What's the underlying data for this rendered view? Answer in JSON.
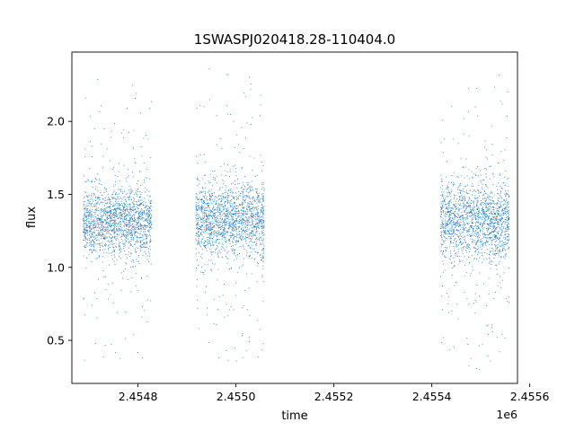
{
  "chart_data": {
    "type": "scatter",
    "title": "1SWASPJ020418.28-110404.0",
    "xlabel": "time",
    "ylabel": "flux",
    "x_offset_label": "1e6",
    "x_tick_labels": [
      "2.4548",
      "2.4550",
      "2.4552",
      "2.4554",
      "2.4556"
    ],
    "x_ticks": [
      2.4548,
      2.455,
      2.4552,
      2.4554,
      2.4556
    ],
    "y_tick_labels": [
      "0.5",
      "1.0",
      "1.5",
      "2.0"
    ],
    "y_ticks": [
      0.5,
      1.0,
      1.5,
      2.0
    ],
    "xlim": [
      2.454665,
      2.455575
    ],
    "ylim": [
      0.205,
      2.475
    ],
    "grid": false,
    "marker_color": "#1f77b4",
    "series": [
      {
        "points_summary": [
          {
            "time_range": [
              2.454687,
              2.454827
            ],
            "flux_median": 1.32,
            "flux_spread": 0.11,
            "flux_min": 0.36,
            "flux_max": 2.29
          },
          {
            "time_range": [
              2.454917,
              2.455057
            ],
            "flux_median": 1.33,
            "flux_spread": 0.12,
            "flux_min": 0.32,
            "flux_max": 2.39
          },
          {
            "time_range": [
              2.455055,
              2.455055
            ],
            "flux_median": 1.3,
            "flux_spread": 0.2,
            "flux_min": 0.32,
            "flux_max": 1.7
          },
          {
            "time_range": [
              2.455417,
              2.455557
            ],
            "flux_median": 1.32,
            "flux_spread": 0.13,
            "flux_min": 0.3,
            "flux_max": 2.34
          }
        ]
      }
    ]
  }
}
